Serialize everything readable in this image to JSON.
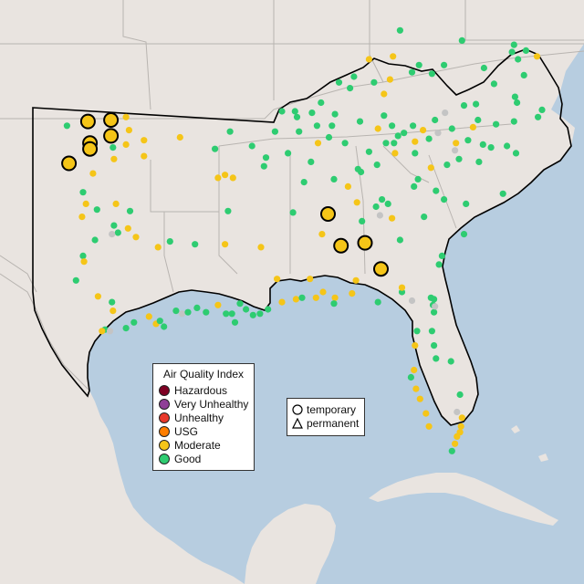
{
  "legend": {
    "title": "Air Quality Index",
    "categories": [
      {
        "label": "Hazardous",
        "color": "#7e0023"
      },
      {
        "label": "Very Unhealthy",
        "color": "#8f3f97"
      },
      {
        "label": "Unhealthy",
        "color": "#e8382b"
      },
      {
        "label": "USG",
        "color": "#ff7e00"
      },
      {
        "label": "Moderate",
        "color": "#f5c518"
      },
      {
        "label": "Good",
        "color": "#2ecc71"
      }
    ],
    "types": [
      {
        "label": "temporary",
        "icon": "circle-icon"
      },
      {
        "label": "permanent",
        "icon": "triangle-icon"
      }
    ]
  },
  "colors": {
    "ocean": "#b7cde0",
    "land": "#e9e4e0",
    "mexico": "#ece7e1",
    "border": "#000000",
    "state_line": "#b8b4b0",
    "inactive_monitor": "#c4c4c4"
  },
  "monitors": [
    {
      "lon": -99.85,
      "lat": 36.55,
      "aqi": "Good"
    },
    {
      "lon": -98.8,
      "lat": 36.7,
      "aqi": "Moderate",
      "large": true
    },
    {
      "lon": -97.65,
      "lat": 36.75,
      "aqi": "Moderate",
      "large": true
    },
    {
      "lon": -97.65,
      "lat": 36.2,
      "aqi": "Moderate",
      "large": true
    },
    {
      "lon": -96.9,
      "lat": 36.85,
      "aqi": "Moderate"
    },
    {
      "lon": -96.75,
      "lat": 36.4,
      "aqi": "Moderate"
    },
    {
      "lon": -98.7,
      "lat": 35.95,
      "aqi": "Moderate",
      "large": true
    },
    {
      "lon": -98.7,
      "lat": 35.75,
      "aqi": "Moderate",
      "large": true
    },
    {
      "lon": -99.75,
      "lat": 35.25,
      "aqi": "Moderate",
      "large": true
    },
    {
      "lon": -97.55,
      "lat": 35.8,
      "aqi": "Good"
    },
    {
      "lon": -97.5,
      "lat": 35.4,
      "aqi": "Moderate"
    },
    {
      "lon": -98.55,
      "lat": 34.9,
      "aqi": "Moderate"
    },
    {
      "lon": -96.9,
      "lat": 35.9,
      "aqi": "Moderate"
    },
    {
      "lon": -96.0,
      "lat": 35.5,
      "aqi": "Moderate"
    },
    {
      "lon": -96.0,
      "lat": 36.05,
      "aqi": "Moderate"
    },
    {
      "lon": -99.05,
      "lat": 34.25,
      "aqi": "Good"
    },
    {
      "lon": -98.9,
      "lat": 33.85,
      "aqi": "Moderate"
    },
    {
      "lon": -98.35,
      "lat": 33.65,
      "aqi": "Good"
    },
    {
      "lon": -97.5,
      "lat": 33.1,
      "aqi": "Good"
    },
    {
      "lon": -96.7,
      "lat": 33.6,
      "aqi": "Good"
    },
    {
      "lon": -96.8,
      "lat": 33.0,
      "aqi": "Moderate"
    },
    {
      "lon": -99.1,
      "lat": 33.4,
      "aqi": "Moderate"
    },
    {
      "lon": -97.4,
      "lat": 33.85,
      "aqi": "Moderate"
    },
    {
      "lon": -98.45,
      "lat": 32.6,
      "aqi": "Good"
    },
    {
      "lon": -97.3,
      "lat": 32.85,
      "aqi": "Good"
    },
    {
      "lon": -96.4,
      "lat": 32.7,
      "aqi": "Moderate"
    },
    {
      "lon": -95.3,
      "lat": 32.35,
      "aqi": "Moderate"
    },
    {
      "lon": -94.7,
      "lat": 32.55,
      "aqi": "Good"
    },
    {
      "lon": -97.6,
      "lat": 32.8,
      "aqi": "inactive"
    },
    {
      "lon": -99.05,
      "lat": 32.05,
      "aqi": "Good"
    },
    {
      "lon": -99.0,
      "lat": 31.85,
      "aqi": "Moderate"
    },
    {
      "lon": -99.4,
      "lat": 31.2,
      "aqi": "Good"
    },
    {
      "lon": -98.3,
      "lat": 30.65,
      "aqi": "Moderate"
    },
    {
      "lon": -97.6,
      "lat": 30.45,
      "aqi": "Good"
    },
    {
      "lon": -97.55,
      "lat": 30.15,
      "aqi": "Moderate"
    },
    {
      "lon": -97.95,
      "lat": 29.5,
      "aqi": "Good"
    },
    {
      "lon": -98.1,
      "lat": 29.45,
      "aqi": "Moderate"
    },
    {
      "lon": -97.7,
      "lat": 29.45,
      "aqi": "inactive"
    },
    {
      "lon": -96.9,
      "lat": 29.55,
      "aqi": "Good"
    },
    {
      "lon": -96.5,
      "lat": 29.75,
      "aqi": "Good"
    },
    {
      "lon": -95.75,
      "lat": 29.95,
      "aqi": "Moderate"
    },
    {
      "lon": -95.4,
      "lat": 29.7,
      "aqi": "Moderate"
    },
    {
      "lon": -95.2,
      "lat": 29.8,
      "aqi": "Good"
    },
    {
      "lon": -95.0,
      "lat": 29.6,
      "aqi": "Good"
    },
    {
      "lon": -94.4,
      "lat": 30.15,
      "aqi": "Good"
    },
    {
      "lon": -94.1,
      "lat": 30.05,
      "aqi": "inactive"
    },
    {
      "lon": -93.8,
      "lat": 30.1,
      "aqi": "Good"
    },
    {
      "lon": -93.35,
      "lat": 30.25,
      "aqi": "Good"
    },
    {
      "lon": -92.9,
      "lat": 30.1,
      "aqi": "Good"
    },
    {
      "lon": -92.3,
      "lat": 30.35,
      "aqi": "Moderate"
    },
    {
      "lon": -91.9,
      "lat": 30.05,
      "aqi": "Good"
    },
    {
      "lon": -91.6,
      "lat": 30.05,
      "aqi": "Good"
    },
    {
      "lon": -91.2,
      "lat": 30.4,
      "aqi": "Good"
    },
    {
      "lon": -90.9,
      "lat": 30.2,
      "aqi": "Good"
    },
    {
      "lon": -91.45,
      "lat": 29.75,
      "aqi": "Good"
    },
    {
      "lon": -90.55,
      "lat": 30.0,
      "aqi": "Good"
    },
    {
      "lon": -90.2,
      "lat": 30.05,
      "aqi": "Good"
    },
    {
      "lon": -89.8,
      "lat": 30.2,
      "aqi": "Good"
    },
    {
      "lon": -89.1,
      "lat": 30.45,
      "aqi": "Moderate"
    },
    {
      "lon": -88.4,
      "lat": 30.55,
      "aqi": "Moderate"
    },
    {
      "lon": -88.1,
      "lat": 30.6,
      "aqi": "Good"
    },
    {
      "lon": -87.4,
      "lat": 30.6,
      "aqi": "Moderate"
    },
    {
      "lon": -87.05,
      "lat": 30.8,
      "aqi": "Moderate"
    },
    {
      "lon": -86.45,
      "lat": 30.6,
      "aqi": "Moderate"
    },
    {
      "lon": -86.5,
      "lat": 30.4,
      "aqi": "Good"
    },
    {
      "lon": -85.6,
      "lat": 30.75,
      "aqi": "Moderate"
    },
    {
      "lon": -84.3,
      "lat": 30.45,
      "aqi": "Good"
    },
    {
      "lon": -83.1,
      "lat": 30.8,
      "aqi": "Good"
    },
    {
      "lon": -82.6,
      "lat": 30.5,
      "aqi": "inactive"
    },
    {
      "lon": -81.65,
      "lat": 30.6,
      "aqi": "Good"
    },
    {
      "lon": -81.55,
      "lat": 30.35,
      "aqi": "Good"
    },
    {
      "lon": -81.5,
      "lat": 30.1,
      "aqi": "Good"
    },
    {
      "lon": -81.5,
      "lat": 30.55,
      "aqi": "Good"
    },
    {
      "lon": -81.45,
      "lat": 30.3,
      "aqi": "inactive"
    },
    {
      "lon": -82.35,
      "lat": 29.45,
      "aqi": "Good"
    },
    {
      "lon": -82.45,
      "lat": 28.95,
      "aqi": "Moderate"
    },
    {
      "lon": -81.6,
      "lat": 29.45,
      "aqi": "Good"
    },
    {
      "lon": -81.5,
      "lat": 28.95,
      "aqi": "Good"
    },
    {
      "lon": -81.4,
      "lat": 28.5,
      "aqi": "Good"
    },
    {
      "lon": -82.5,
      "lat": 28.1,
      "aqi": "Moderate"
    },
    {
      "lon": -82.65,
      "lat": 27.85,
      "aqi": "Good"
    },
    {
      "lon": -82.4,
      "lat": 27.45,
      "aqi": "Moderate"
    },
    {
      "lon": -82.2,
      "lat": 27.1,
      "aqi": "Moderate"
    },
    {
      "lon": -81.9,
      "lat": 26.6,
      "aqi": "Moderate"
    },
    {
      "lon": -81.75,
      "lat": 26.15,
      "aqi": "Moderate"
    },
    {
      "lon": -80.65,
      "lat": 28.4,
      "aqi": "Good"
    },
    {
      "lon": -80.2,
      "lat": 27.25,
      "aqi": "Good"
    },
    {
      "lon": -80.35,
      "lat": 26.65,
      "aqi": "inactive"
    },
    {
      "lon": -80.1,
      "lat": 26.45,
      "aqi": "Moderate"
    },
    {
      "lon": -80.15,
      "lat": 26.15,
      "aqi": "Moderate"
    },
    {
      "lon": -80.2,
      "lat": 25.95,
      "aqi": "Moderate"
    },
    {
      "lon": -80.35,
      "lat": 25.8,
      "aqi": "Moderate"
    },
    {
      "lon": -80.45,
      "lat": 25.55,
      "aqi": "Moderate"
    },
    {
      "lon": -80.6,
      "lat": 25.3,
      "aqi": "Good"
    },
    {
      "lon": -81.1,
      "lat": 32.05,
      "aqi": "Good"
    },
    {
      "lon": -81.25,
      "lat": 31.75,
      "aqi": "Good"
    },
    {
      "lon": -80.0,
      "lat": 32.8,
      "aqi": "Good"
    },
    {
      "lon": -79.9,
      "lat": 33.85,
      "aqi": "Good"
    },
    {
      "lon": -81.0,
      "lat": 34.0,
      "aqi": "Good"
    },
    {
      "lon": -81.4,
      "lat": 34.3,
      "aqi": "Good"
    },
    {
      "lon": -82.3,
      "lat": 34.7,
      "aqi": "Good"
    },
    {
      "lon": -82.5,
      "lat": 34.45,
      "aqi": "Good"
    },
    {
      "lon": -81.65,
      "lat": 35.1,
      "aqi": "Moderate"
    },
    {
      "lon": -80.85,
      "lat": 35.2,
      "aqi": "Good"
    },
    {
      "lon": -80.25,
      "lat": 35.4,
      "aqi": "Good"
    },
    {
      "lon": -80.45,
      "lat": 35.7,
      "aqi": "inactive"
    },
    {
      "lon": -79.8,
      "lat": 36.05,
      "aqi": "Good"
    },
    {
      "lon": -79.05,
      "lat": 35.9,
      "aqi": "Good"
    },
    {
      "lon": -78.65,
      "lat": 35.8,
      "aqi": "Good"
    },
    {
      "lon": -77.85,
      "lat": 35.85,
      "aqi": "Good"
    },
    {
      "lon": -77.4,
      "lat": 35.6,
      "aqi": "Good"
    },
    {
      "lon": -78.05,
      "lat": 34.2,
      "aqi": "Good"
    },
    {
      "lon": -79.25,
      "lat": 35.3,
      "aqi": "Good"
    },
    {
      "lon": -80.4,
      "lat": 35.95,
      "aqi": "Moderate"
    },
    {
      "lon": -79.55,
      "lat": 36.5,
      "aqi": "Moderate"
    },
    {
      "lon": -77.5,
      "lat": 36.7,
      "aqi": "Good"
    },
    {
      "lon": -76.3,
      "lat": 36.85,
      "aqi": "Good"
    },
    {
      "lon": -76.1,
      "lat": 37.1,
      "aqi": "Good"
    },
    {
      "lon": -77.45,
      "lat": 37.55,
      "aqi": "Good"
    },
    {
      "lon": -77.35,
      "lat": 37.35,
      "aqi": "Good"
    },
    {
      "lon": -78.5,
      "lat": 38.0,
      "aqi": "Good"
    },
    {
      "lon": -79.4,
      "lat": 37.3,
      "aqi": "Good"
    },
    {
      "lon": -80.0,
      "lat": 37.25,
      "aqi": "Good"
    },
    {
      "lon": -79.0,
      "lat": 38.55,
      "aqi": "Good"
    },
    {
      "lon": -77.3,
      "lat": 38.85,
      "aqi": "Good"
    },
    {
      "lon": -77.0,
      "lat": 38.3,
      "aqi": "Good"
    },
    {
      "lon": -77.6,
      "lat": 39.1,
      "aqi": "Good"
    },
    {
      "lon": -77.5,
      "lat": 39.35,
      "aqi": "Good"
    },
    {
      "lon": -76.35,
      "lat": 38.95,
      "aqi": "Moderate"
    },
    {
      "lon": -76.9,
      "lat": 39.15,
      "aqi": "Good"
    },
    {
      "lon": -82.45,
      "lat": 35.6,
      "aqi": "Good"
    },
    {
      "lon": -83.45,
      "lat": 35.6,
      "aqi": "Moderate"
    },
    {
      "lon": -83.9,
      "lat": 35.95,
      "aqi": "Good"
    },
    {
      "lon": -83.5,
      "lat": 35.95,
      "aqi": "Good"
    },
    {
      "lon": -83.0,
      "lat": 36.3,
      "aqi": "Good"
    },
    {
      "lon": -82.55,
      "lat": 36.55,
      "aqi": "Good"
    },
    {
      "lon": -82.05,
      "lat": 36.4,
      "aqi": "Moderate"
    },
    {
      "lon": -81.75,
      "lat": 36.1,
      "aqi": "Good"
    },
    {
      "lon": -81.3,
      "lat": 36.3,
      "aqi": "inactive"
    },
    {
      "lon": -84.35,
      "lat": 35.2,
      "aqi": "Good"
    },
    {
      "lon": -85.3,
      "lat": 35.05,
      "aqi": "Good"
    },
    {
      "lon": -84.75,
      "lat": 35.65,
      "aqi": "Good"
    },
    {
      "lon": -85.95,
      "lat": 35.95,
      "aqi": "Good"
    },
    {
      "lon": -86.75,
      "lat": 36.15,
      "aqi": "Good"
    },
    {
      "lon": -86.6,
      "lat": 36.55,
      "aqi": "Good"
    },
    {
      "lon": -87.35,
      "lat": 36.55,
      "aqi": "Good"
    },
    {
      "lon": -87.3,
      "lat": 35.95,
      "aqi": "Moderate"
    },
    {
      "lon": -88.8,
      "lat": 35.6,
      "aqi": "Good"
    },
    {
      "lon": -90.0,
      "lat": 35.15,
      "aqi": "Good"
    },
    {
      "lon": -89.9,
      "lat": 35.45,
      "aqi": "Good"
    },
    {
      "lon": -90.6,
      "lat": 35.85,
      "aqi": "Good"
    },
    {
      "lon": -91.7,
      "lat": 36.35,
      "aqi": "Good"
    },
    {
      "lon": -92.3,
      "lat": 34.75,
      "aqi": "Moderate"
    },
    {
      "lon": -91.95,
      "lat": 34.85,
      "aqi": "Moderate"
    },
    {
      "lon": -91.55,
      "lat": 34.75,
      "aqi": "Moderate"
    },
    {
      "lon": -94.2,
      "lat": 36.15,
      "aqi": "Moderate"
    },
    {
      "lon": -92.45,
      "lat": 35.75,
      "aqi": "Good"
    },
    {
      "lon": -91.8,
      "lat": 33.6,
      "aqi": "Good"
    },
    {
      "lon": -93.45,
      "lat": 32.45,
      "aqi": "Good"
    },
    {
      "lon": -91.95,
      "lat": 32.45,
      "aqi": "Moderate"
    },
    {
      "lon": -90.15,
      "lat": 32.35,
      "aqi": "Moderate"
    },
    {
      "lon": -89.35,
      "lat": 31.25,
      "aqi": "Moderate"
    },
    {
      "lon": -88.55,
      "lat": 33.55,
      "aqi": "Good"
    },
    {
      "lon": -86.8,
      "lat": 33.5,
      "aqi": "Moderate",
      "large": true
    },
    {
      "lon": -86.5,
      "lat": 34.7,
      "aqi": "Good"
    },
    {
      "lon": -85.8,
      "lat": 34.45,
      "aqi": "Moderate"
    },
    {
      "lon": -86.15,
      "lat": 32.4,
      "aqi": "Moderate",
      "large": true
    },
    {
      "lon": -85.35,
      "lat": 33.9,
      "aqi": "Moderate"
    },
    {
      "lon": -85.1,
      "lat": 33.25,
      "aqi": "Good"
    },
    {
      "lon": -84.4,
      "lat": 33.75,
      "aqi": "Good"
    },
    {
      "lon": -84.1,
      "lat": 34.0,
      "aqi": "Good"
    },
    {
      "lon": -83.8,
      "lat": 33.85,
      "aqi": "Good"
    },
    {
      "lon": -84.2,
      "lat": 33.45,
      "aqi": "inactive"
    },
    {
      "lon": -83.6,
      "lat": 33.35,
      "aqi": "Moderate"
    },
    {
      "lon": -82.0,
      "lat": 33.4,
      "aqi": "Good"
    },
    {
      "lon": -83.2,
      "lat": 32.6,
      "aqi": "Good"
    },
    {
      "lon": -84.95,
      "lat": 32.5,
      "aqi": "Moderate",
      "large": true
    },
    {
      "lon": -84.15,
      "lat": 31.6,
      "aqi": "Moderate",
      "large": true
    },
    {
      "lon": -83.1,
      "lat": 30.95,
      "aqi": "Moderate"
    },
    {
      "lon": -85.4,
      "lat": 31.2,
      "aqi": "Moderate"
    },
    {
      "lon": -87.7,
      "lat": 31.25,
      "aqi": "Moderate"
    },
    {
      "lon": -87.1,
      "lat": 32.8,
      "aqi": "Moderate"
    },
    {
      "lon": -88.0,
      "lat": 34.6,
      "aqi": "Good"
    },
    {
      "lon": -87.65,
      "lat": 35.3,
      "aqi": "Good"
    },
    {
      "lon": -85.15,
      "lat": 34.95,
      "aqi": "Good"
    },
    {
      "lon": -85.7,
      "lat": 37.85,
      "aqi": "Good"
    },
    {
      "lon": -85.5,
      "lat": 38.25,
      "aqi": "Good"
    },
    {
      "lon": -84.5,
      "lat": 38.05,
      "aqi": "Good"
    },
    {
      "lon": -84.0,
      "lat": 37.65,
      "aqi": "Moderate"
    },
    {
      "lon": -83.7,
      "lat": 38.15,
      "aqi": "Moderate"
    },
    {
      "lon": -82.6,
      "lat": 38.4,
      "aqi": "Good"
    },
    {
      "lon": -82.25,
      "lat": 38.65,
      "aqi": "Good"
    },
    {
      "lon": -81.6,
      "lat": 38.35,
      "aqi": "Good"
    },
    {
      "lon": -81.0,
      "lat": 38.65,
      "aqi": "Good"
    },
    {
      "lon": -80.1,
      "lat": 39.5,
      "aqi": "Good"
    },
    {
      "lon": -83.2,
      "lat": 39.85,
      "aqi": "Good"
    },
    {
      "lon": -83.55,
      "lat": 38.95,
      "aqi": "Moderate"
    },
    {
      "lon": -84.75,
      "lat": 38.85,
      "aqi": "Moderate"
    },
    {
      "lon": -86.25,
      "lat": 38.05,
      "aqi": "Good"
    },
    {
      "lon": -87.15,
      "lat": 37.35,
      "aqi": "Good"
    },
    {
      "lon": -87.6,
      "lat": 37.0,
      "aqi": "Good"
    },
    {
      "lon": -88.45,
      "lat": 37.05,
      "aqi": "Good"
    },
    {
      "lon": -89.1,
      "lat": 37.05,
      "aqi": "Good"
    },
    {
      "lon": -88.35,
      "lat": 36.85,
      "aqi": "Good"
    },
    {
      "lon": -89.45,
      "lat": 36.35,
      "aqi": "Good"
    },
    {
      "lon": -88.25,
      "lat": 36.35,
      "aqi": "Good"
    },
    {
      "lon": -86.45,
      "lat": 36.95,
      "aqi": "Good"
    },
    {
      "lon": -85.2,
      "lat": 36.7,
      "aqi": "Good"
    },
    {
      "lon": -84.0,
      "lat": 36.9,
      "aqi": "Good"
    },
    {
      "lon": -83.6,
      "lat": 36.55,
      "aqi": "Good"
    },
    {
      "lon": -83.3,
      "lat": 36.2,
      "aqi": "Good"
    },
    {
      "lon": -84.3,
      "lat": 36.45,
      "aqi": "Moderate"
    },
    {
      "lon": -82.45,
      "lat": 36.0,
      "aqi": "Moderate"
    },
    {
      "lon": -81.45,
      "lat": 36.75,
      "aqi": "Good"
    },
    {
      "lon": -80.95,
      "lat": 37.0,
      "aqi": "inactive"
    },
    {
      "lon": -80.6,
      "lat": 36.45,
      "aqi": "Good"
    },
    {
      "lon": -79.3,
      "lat": 36.75,
      "aqi": "Good"
    },
    {
      "lon": -78.4,
      "lat": 36.6,
      "aqi": "Good"
    }
  ]
}
